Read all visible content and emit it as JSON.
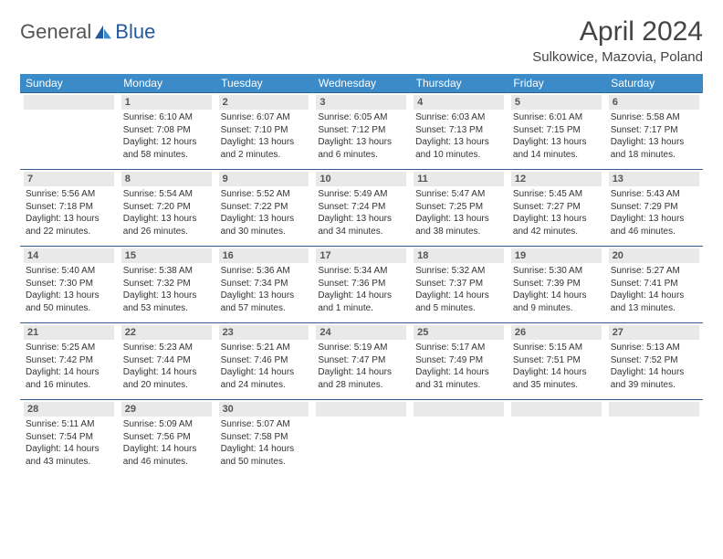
{
  "logo": {
    "general": "General",
    "blue": "Blue"
  },
  "title": "April 2024",
  "location": "Sulkowice, Mazovia, Poland",
  "colors": {
    "header_bg": "#3b8bc8",
    "header_text": "#ffffff",
    "daynum_bg": "#e9e9e9",
    "daynum_text": "#555555",
    "body_text": "#333333",
    "rule": "#2f5f8a",
    "logo_gray": "#555555",
    "logo_blue": "#235a9e"
  },
  "weekdays": [
    "Sunday",
    "Monday",
    "Tuesday",
    "Wednesday",
    "Thursday",
    "Friday",
    "Saturday"
  ],
  "grid_start_offset": 1,
  "days": [
    {
      "n": 1,
      "sunrise": "6:10 AM",
      "sunset": "7:08 PM",
      "daylight": "12 hours and 58 minutes."
    },
    {
      "n": 2,
      "sunrise": "6:07 AM",
      "sunset": "7:10 PM",
      "daylight": "13 hours and 2 minutes."
    },
    {
      "n": 3,
      "sunrise": "6:05 AM",
      "sunset": "7:12 PM",
      "daylight": "13 hours and 6 minutes."
    },
    {
      "n": 4,
      "sunrise": "6:03 AM",
      "sunset": "7:13 PM",
      "daylight": "13 hours and 10 minutes."
    },
    {
      "n": 5,
      "sunrise": "6:01 AM",
      "sunset": "7:15 PM",
      "daylight": "13 hours and 14 minutes."
    },
    {
      "n": 6,
      "sunrise": "5:58 AM",
      "sunset": "7:17 PM",
      "daylight": "13 hours and 18 minutes."
    },
    {
      "n": 7,
      "sunrise": "5:56 AM",
      "sunset": "7:18 PM",
      "daylight": "13 hours and 22 minutes."
    },
    {
      "n": 8,
      "sunrise": "5:54 AM",
      "sunset": "7:20 PM",
      "daylight": "13 hours and 26 minutes."
    },
    {
      "n": 9,
      "sunrise": "5:52 AM",
      "sunset": "7:22 PM",
      "daylight": "13 hours and 30 minutes."
    },
    {
      "n": 10,
      "sunrise": "5:49 AM",
      "sunset": "7:24 PM",
      "daylight": "13 hours and 34 minutes."
    },
    {
      "n": 11,
      "sunrise": "5:47 AM",
      "sunset": "7:25 PM",
      "daylight": "13 hours and 38 minutes."
    },
    {
      "n": 12,
      "sunrise": "5:45 AM",
      "sunset": "7:27 PM",
      "daylight": "13 hours and 42 minutes."
    },
    {
      "n": 13,
      "sunrise": "5:43 AM",
      "sunset": "7:29 PM",
      "daylight": "13 hours and 46 minutes."
    },
    {
      "n": 14,
      "sunrise": "5:40 AM",
      "sunset": "7:30 PM",
      "daylight": "13 hours and 50 minutes."
    },
    {
      "n": 15,
      "sunrise": "5:38 AM",
      "sunset": "7:32 PM",
      "daylight": "13 hours and 53 minutes."
    },
    {
      "n": 16,
      "sunrise": "5:36 AM",
      "sunset": "7:34 PM",
      "daylight": "13 hours and 57 minutes."
    },
    {
      "n": 17,
      "sunrise": "5:34 AM",
      "sunset": "7:36 PM",
      "daylight": "14 hours and 1 minute."
    },
    {
      "n": 18,
      "sunrise": "5:32 AM",
      "sunset": "7:37 PM",
      "daylight": "14 hours and 5 minutes."
    },
    {
      "n": 19,
      "sunrise": "5:30 AM",
      "sunset": "7:39 PM",
      "daylight": "14 hours and 9 minutes."
    },
    {
      "n": 20,
      "sunrise": "5:27 AM",
      "sunset": "7:41 PM",
      "daylight": "14 hours and 13 minutes."
    },
    {
      "n": 21,
      "sunrise": "5:25 AM",
      "sunset": "7:42 PM",
      "daylight": "14 hours and 16 minutes."
    },
    {
      "n": 22,
      "sunrise": "5:23 AM",
      "sunset": "7:44 PM",
      "daylight": "14 hours and 20 minutes."
    },
    {
      "n": 23,
      "sunrise": "5:21 AM",
      "sunset": "7:46 PM",
      "daylight": "14 hours and 24 minutes."
    },
    {
      "n": 24,
      "sunrise": "5:19 AM",
      "sunset": "7:47 PM",
      "daylight": "14 hours and 28 minutes."
    },
    {
      "n": 25,
      "sunrise": "5:17 AM",
      "sunset": "7:49 PM",
      "daylight": "14 hours and 31 minutes."
    },
    {
      "n": 26,
      "sunrise": "5:15 AM",
      "sunset": "7:51 PM",
      "daylight": "14 hours and 35 minutes."
    },
    {
      "n": 27,
      "sunrise": "5:13 AM",
      "sunset": "7:52 PM",
      "daylight": "14 hours and 39 minutes."
    },
    {
      "n": 28,
      "sunrise": "5:11 AM",
      "sunset": "7:54 PM",
      "daylight": "14 hours and 43 minutes."
    },
    {
      "n": 29,
      "sunrise": "5:09 AM",
      "sunset": "7:56 PM",
      "daylight": "14 hours and 46 minutes."
    },
    {
      "n": 30,
      "sunrise": "5:07 AM",
      "sunset": "7:58 PM",
      "daylight": "14 hours and 50 minutes."
    }
  ],
  "labels": {
    "sunrise": "Sunrise:",
    "sunset": "Sunset:",
    "daylight": "Daylight:"
  }
}
